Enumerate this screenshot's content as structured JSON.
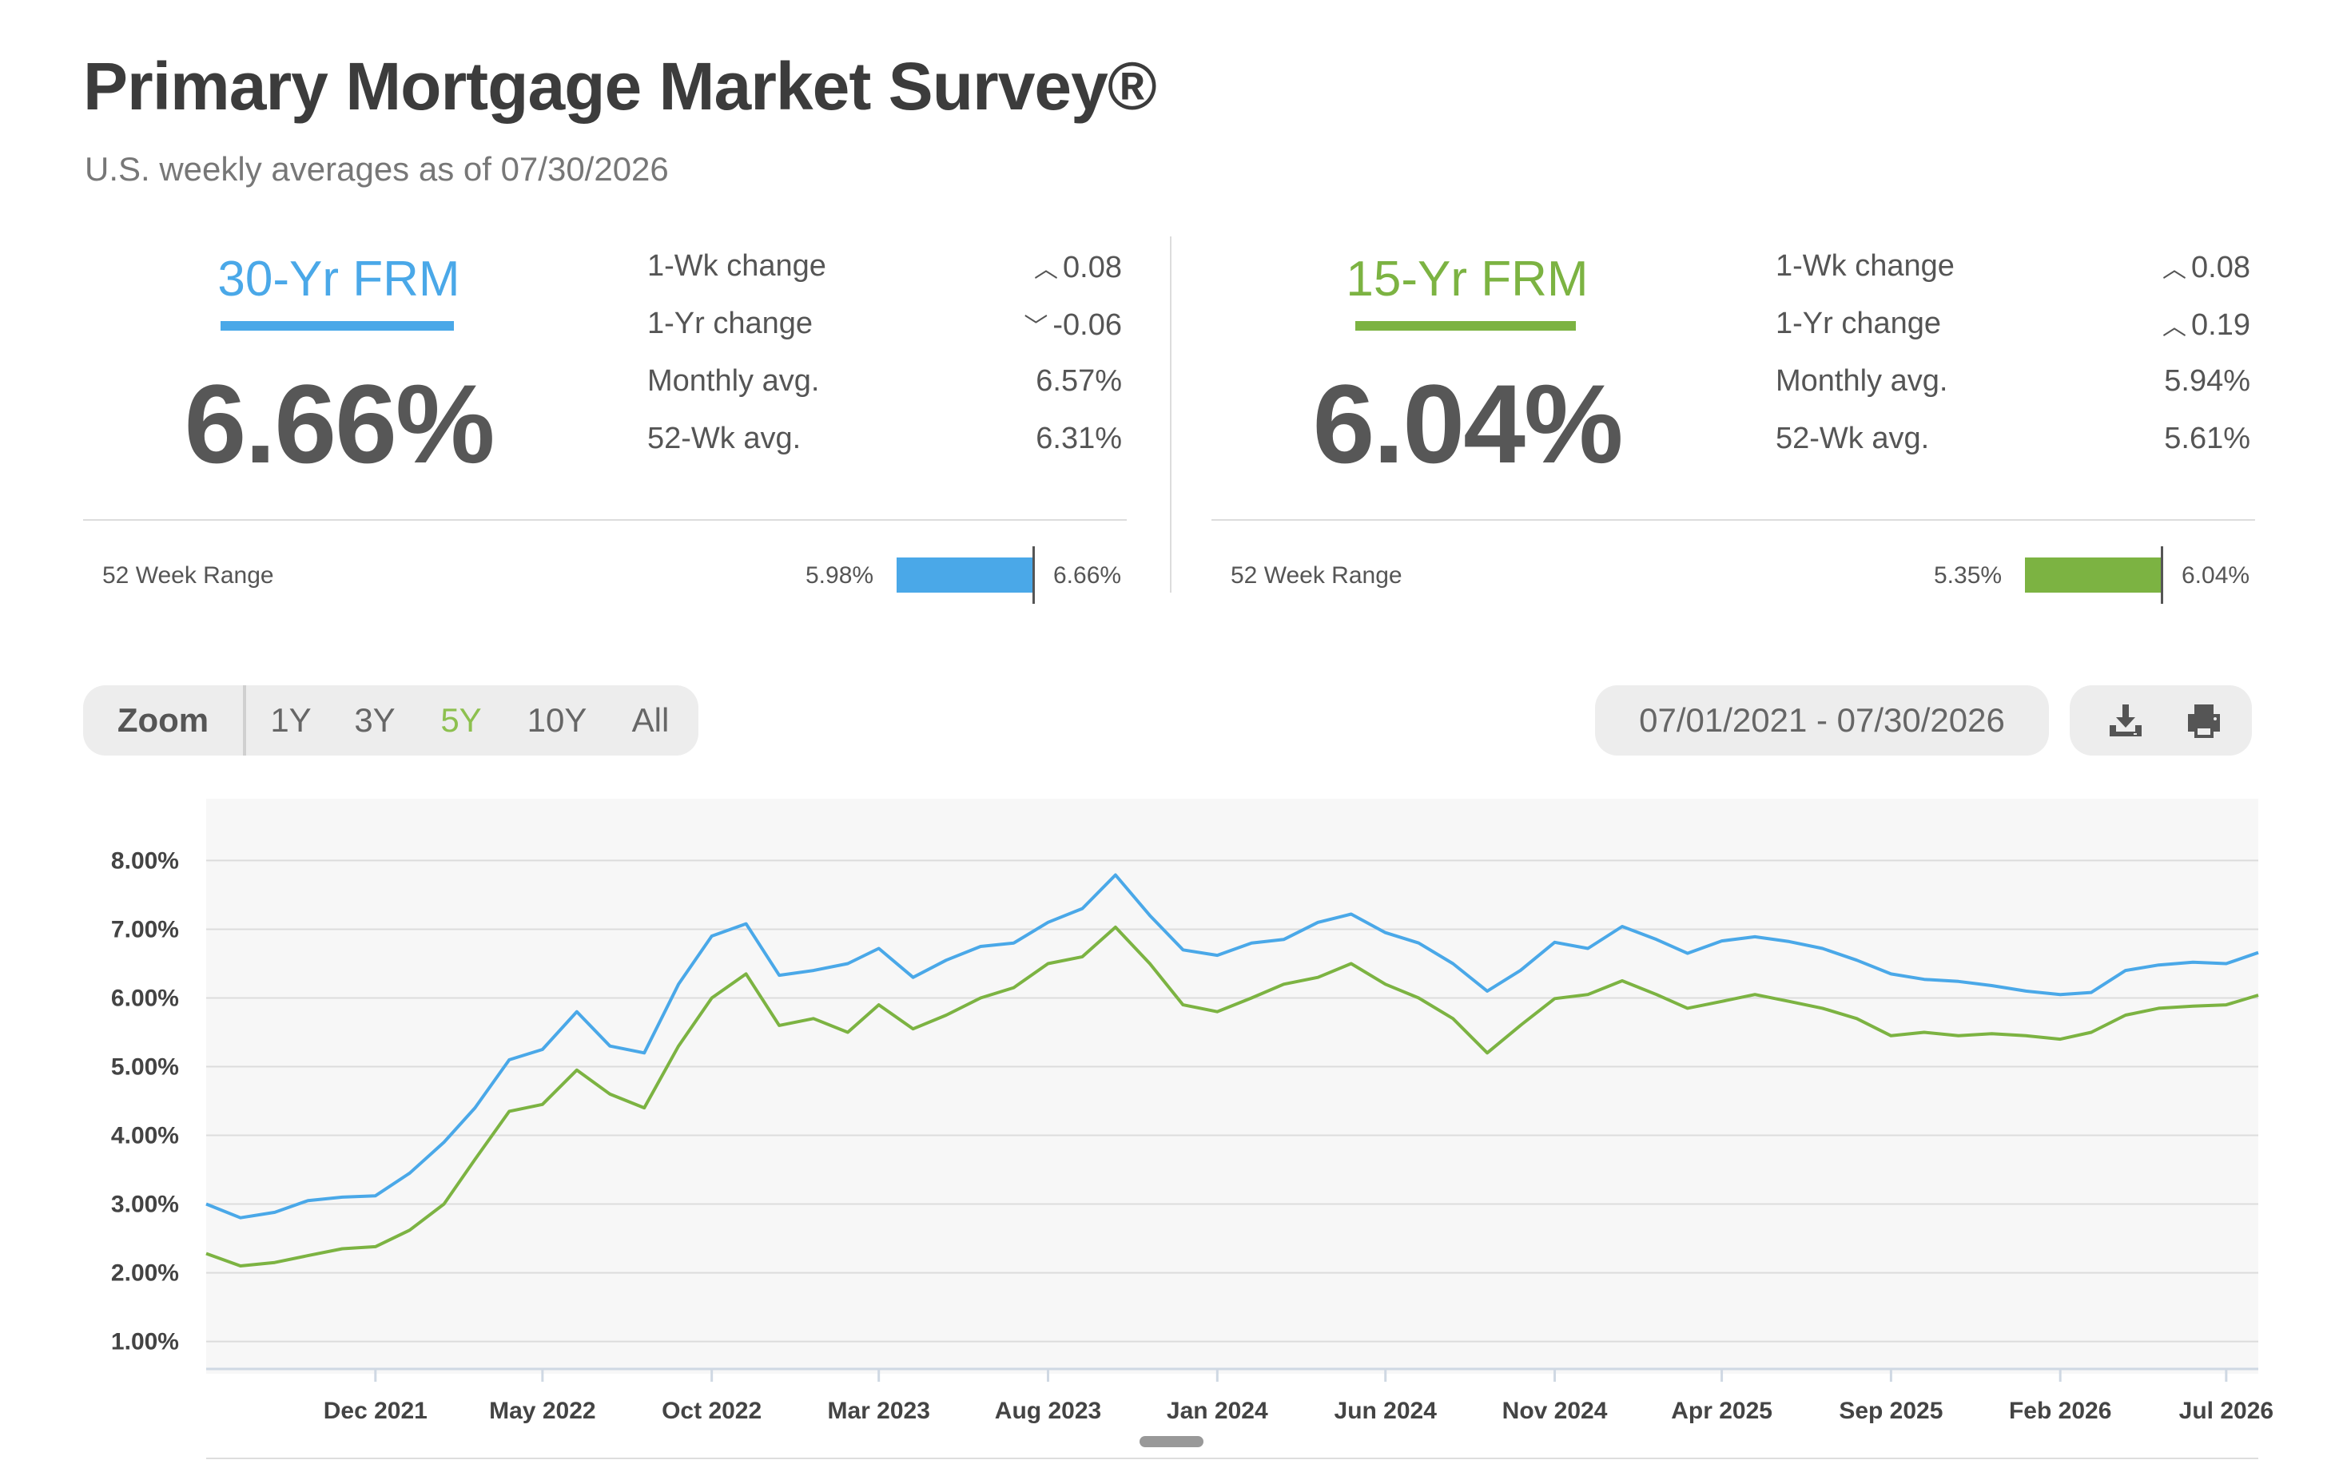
{
  "header": {
    "title": "Primary Mortgage Market Survey®",
    "subtitle": "U.S. weekly averages as of 07/30/2026"
  },
  "colors": {
    "frm30": "#4aa8e8",
    "frm15": "#7cb342",
    "text": "#575757"
  },
  "rates": [
    {
      "name": "30-Yr FRM",
      "rate": "6.66%",
      "stats": [
        {
          "label": "1-Wk change",
          "direction": "up",
          "value": "0.08"
        },
        {
          "label": "1-Yr change",
          "direction": "down",
          "value": "-0.06"
        },
        {
          "label": "Monthly avg.",
          "direction": "",
          "value": "6.57%"
        },
        {
          "label": "52-Wk avg.",
          "direction": "",
          "value": "6.31%"
        }
      ],
      "range_label": "52 Week Range",
      "range_low": "5.98%",
      "range_high": "6.66%"
    },
    {
      "name": "15-Yr FRM",
      "rate": "6.04%",
      "stats": [
        {
          "label": "1-Wk change",
          "direction": "up",
          "value": "0.08"
        },
        {
          "label": "1-Yr change",
          "direction": "up",
          "value": "0.19"
        },
        {
          "label": "Monthly avg.",
          "direction": "",
          "value": "5.94%"
        },
        {
          "label": "52-Wk avg.",
          "direction": "",
          "value": "5.61%"
        }
      ],
      "range_label": "52 Week Range",
      "range_low": "5.35%",
      "range_high": "6.04%"
    }
  ],
  "controls": {
    "zoom_label": "Zoom",
    "zoom_options": [
      "1Y",
      "3Y",
      "5Y",
      "10Y",
      "All"
    ],
    "zoom_selected": "5Y",
    "date_range": "07/01/2021 - 07/30/2026",
    "download_icon": "download-icon",
    "print_icon": "print-icon"
  },
  "chart_data": {
    "type": "line",
    "x_start": "2021-07-01",
    "x_end": "2026-07-30",
    "ylim": [
      0.6,
      8.9
    ],
    "yticks": [
      "8.00%",
      "7.00%",
      "6.00%",
      "5.00%",
      "4.00%",
      "3.00%",
      "2.00%",
      "1.00%"
    ],
    "ytick_values": [
      8,
      7,
      6,
      5,
      4,
      3,
      2,
      1
    ],
    "xticks": [
      {
        "label": "Dec 2021",
        "date": "2021-12-01"
      },
      {
        "label": "May 2022",
        "date": "2022-05-01"
      },
      {
        "label": "Oct 2022",
        "date": "2022-10-01"
      },
      {
        "label": "Mar 2023",
        "date": "2023-03-01"
      },
      {
        "label": "Aug 2023",
        "date": "2023-08-01"
      },
      {
        "label": "Jan 2024",
        "date": "2024-01-01"
      },
      {
        "label": "Jun 2024",
        "date": "2024-06-01"
      },
      {
        "label": "Nov 2024",
        "date": "2024-11-01"
      },
      {
        "label": "Apr 2025",
        "date": "2025-04-01"
      },
      {
        "label": "Sep 2025",
        "date": "2025-09-01"
      },
      {
        "label": "Feb 2026",
        "date": "2026-02-01"
      },
      {
        "label": "Jul 2026",
        "date": "2026-07-01"
      }
    ],
    "grid": true,
    "series": [
      {
        "name": "30-Yr FRM",
        "color": "#4aa8e8",
        "points": [
          [
            "2021-07-01",
            3.0
          ],
          [
            "2021-08-01",
            2.8
          ],
          [
            "2021-09-01",
            2.88
          ],
          [
            "2021-10-01",
            3.05
          ],
          [
            "2021-11-01",
            3.1
          ],
          [
            "2021-12-01",
            3.12
          ],
          [
            "2022-01-01",
            3.45
          ],
          [
            "2022-02-01",
            3.9
          ],
          [
            "2022-03-01",
            4.4
          ],
          [
            "2022-04-01",
            5.1
          ],
          [
            "2022-05-01",
            5.25
          ],
          [
            "2022-06-01",
            5.8
          ],
          [
            "2022-07-01",
            5.3
          ],
          [
            "2022-08-01",
            5.2
          ],
          [
            "2022-09-01",
            6.2
          ],
          [
            "2022-10-01",
            6.9
          ],
          [
            "2022-11-01",
            7.08
          ],
          [
            "2022-12-01",
            6.33
          ],
          [
            "2023-01-01",
            6.4
          ],
          [
            "2023-02-01",
            6.5
          ],
          [
            "2023-03-01",
            6.72
          ],
          [
            "2023-04-01",
            6.3
          ],
          [
            "2023-05-01",
            6.55
          ],
          [
            "2023-06-01",
            6.75
          ],
          [
            "2023-07-01",
            6.8
          ],
          [
            "2023-08-01",
            7.1
          ],
          [
            "2023-09-01",
            7.3
          ],
          [
            "2023-10-01",
            7.79
          ],
          [
            "2023-11-01",
            7.2
          ],
          [
            "2023-12-01",
            6.7
          ],
          [
            "2024-01-01",
            6.62
          ],
          [
            "2024-02-01",
            6.8
          ],
          [
            "2024-03-01",
            6.85
          ],
          [
            "2024-04-01",
            7.1
          ],
          [
            "2024-05-01",
            7.22
          ],
          [
            "2024-06-01",
            6.95
          ],
          [
            "2024-07-01",
            6.8
          ],
          [
            "2024-08-01",
            6.5
          ],
          [
            "2024-09-01",
            6.1
          ],
          [
            "2024-10-01",
            6.4
          ],
          [
            "2024-11-01",
            6.81
          ],
          [
            "2024-12-01",
            6.72
          ],
          [
            "2025-01-01",
            7.04
          ],
          [
            "2025-02-01",
            6.85
          ],
          [
            "2025-03-01",
            6.65
          ],
          [
            "2025-04-01",
            6.83
          ],
          [
            "2025-05-01",
            6.89
          ],
          [
            "2025-06-01",
            6.82
          ],
          [
            "2025-07-01",
            6.72
          ],
          [
            "2025-08-01",
            6.55
          ],
          [
            "2025-09-01",
            6.35
          ],
          [
            "2025-10-01",
            6.27
          ],
          [
            "2025-11-01",
            6.24
          ],
          [
            "2025-12-01",
            6.18
          ],
          [
            "2026-01-01",
            6.1
          ],
          [
            "2026-02-01",
            6.05
          ],
          [
            "2026-03-01",
            6.08
          ],
          [
            "2026-04-01",
            6.4
          ],
          [
            "2026-05-01",
            6.48
          ],
          [
            "2026-06-01",
            6.52
          ],
          [
            "2026-07-01",
            6.5
          ],
          [
            "2026-07-30",
            6.66
          ]
        ]
      },
      {
        "name": "15-Yr FRM",
        "color": "#7cb342",
        "points": [
          [
            "2021-07-01",
            2.28
          ],
          [
            "2021-08-01",
            2.1
          ],
          [
            "2021-09-01",
            2.15
          ],
          [
            "2021-10-01",
            2.25
          ],
          [
            "2021-11-01",
            2.35
          ],
          [
            "2021-12-01",
            2.38
          ],
          [
            "2022-01-01",
            2.62
          ],
          [
            "2022-02-01",
            3.0
          ],
          [
            "2022-03-01",
            3.65
          ],
          [
            "2022-04-01",
            4.35
          ],
          [
            "2022-05-01",
            4.45
          ],
          [
            "2022-06-01",
            4.95
          ],
          [
            "2022-07-01",
            4.6
          ],
          [
            "2022-08-01",
            4.4
          ],
          [
            "2022-09-01",
            5.3
          ],
          [
            "2022-10-01",
            6.0
          ],
          [
            "2022-11-01",
            6.35
          ],
          [
            "2022-12-01",
            5.6
          ],
          [
            "2023-01-01",
            5.7
          ],
          [
            "2023-02-01",
            5.5
          ],
          [
            "2023-03-01",
            5.9
          ],
          [
            "2023-04-01",
            5.55
          ],
          [
            "2023-05-01",
            5.75
          ],
          [
            "2023-06-01",
            6.0
          ],
          [
            "2023-07-01",
            6.15
          ],
          [
            "2023-08-01",
            6.5
          ],
          [
            "2023-09-01",
            6.6
          ],
          [
            "2023-10-01",
            7.03
          ],
          [
            "2023-11-01",
            6.5
          ],
          [
            "2023-12-01",
            5.9
          ],
          [
            "2024-01-01",
            5.8
          ],
          [
            "2024-02-01",
            6.0
          ],
          [
            "2024-03-01",
            6.2
          ],
          [
            "2024-04-01",
            6.3
          ],
          [
            "2024-05-01",
            6.5
          ],
          [
            "2024-06-01",
            6.2
          ],
          [
            "2024-07-01",
            6.0
          ],
          [
            "2024-08-01",
            5.7
          ],
          [
            "2024-09-01",
            5.2
          ],
          [
            "2024-10-01",
            5.6
          ],
          [
            "2024-11-01",
            5.99
          ],
          [
            "2024-12-01",
            6.05
          ],
          [
            "2025-01-01",
            6.25
          ],
          [
            "2025-02-01",
            6.05
          ],
          [
            "2025-03-01",
            5.85
          ],
          [
            "2025-04-01",
            5.95
          ],
          [
            "2025-05-01",
            6.05
          ],
          [
            "2025-06-01",
            5.95
          ],
          [
            "2025-07-01",
            5.85
          ],
          [
            "2025-08-01",
            5.7
          ],
          [
            "2025-09-01",
            5.45
          ],
          [
            "2025-10-01",
            5.5
          ],
          [
            "2025-11-01",
            5.45
          ],
          [
            "2025-12-01",
            5.48
          ],
          [
            "2026-01-01",
            5.45
          ],
          [
            "2026-02-01",
            5.4
          ],
          [
            "2026-03-01",
            5.5
          ],
          [
            "2026-04-01",
            5.75
          ],
          [
            "2026-05-01",
            5.85
          ],
          [
            "2026-06-01",
            5.88
          ],
          [
            "2026-07-01",
            5.9
          ],
          [
            "2026-07-30",
            6.04
          ]
        ]
      }
    ]
  }
}
